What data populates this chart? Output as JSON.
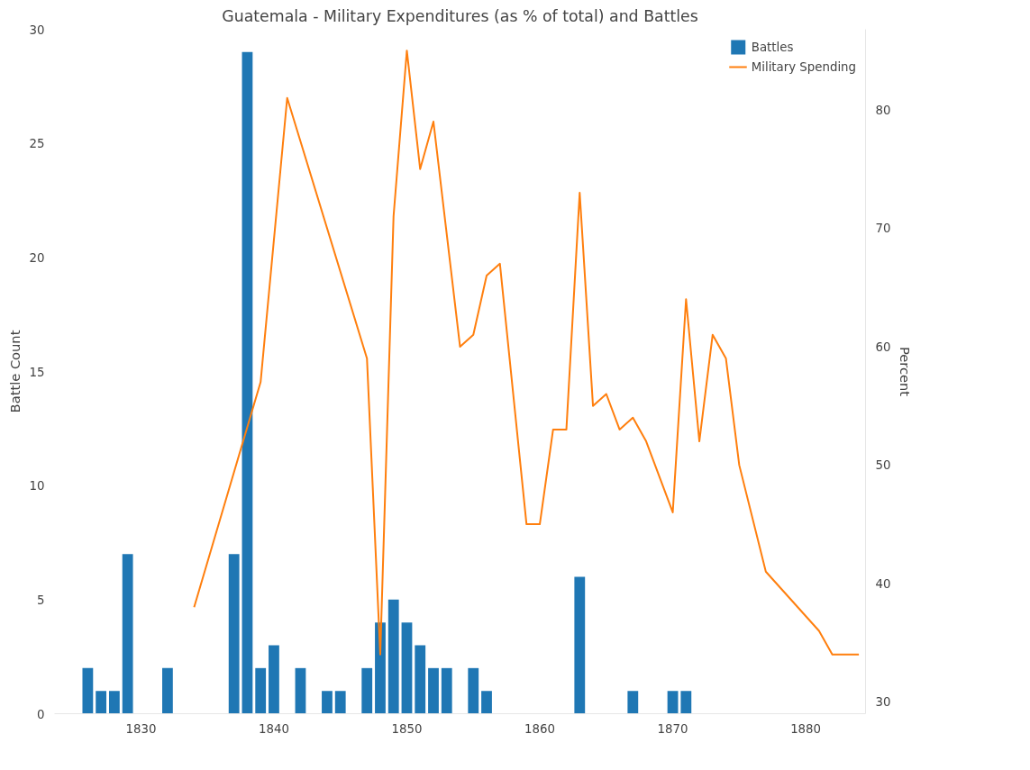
{
  "chart_data": {
    "type": "bar",
    "title": "Guatemala - Military Expenditures (as % of total) and Battles",
    "ylabel": "Battle Count",
    "y2label": "Percent",
    "xlim": [
      1823.5,
      1884.5
    ],
    "xticks": [
      1830,
      1840,
      1850,
      1860,
      1870,
      1880
    ],
    "ylim": [
      0,
      30
    ],
    "yticks": [
      0,
      5,
      10,
      15,
      20,
      25,
      30
    ],
    "y2lim": [
      29,
      86.8
    ],
    "y2ticks": [
      30,
      40,
      50,
      60,
      70,
      80
    ],
    "grid": false,
    "legend": "top right",
    "series": [
      {
        "name": "Battles",
        "color": "#1f77b4",
        "x": [
          1826,
          1827,
          1828,
          1829,
          1832,
          1837,
          1838,
          1839,
          1840,
          1842,
          1844,
          1845,
          1847,
          1848,
          1849,
          1850,
          1851,
          1852,
          1853,
          1855,
          1856,
          1863,
          1867,
          1870,
          1871
        ],
        "values": [
          2,
          1,
          1,
          7,
          2,
          7,
          29,
          2,
          3,
          2,
          1,
          1,
          2,
          4,
          5,
          4,
          3,
          2,
          2,
          2,
          1,
          6,
          1,
          1,
          1
        ]
      },
      {
        "name": "Military Spending",
        "type": "line",
        "axis": "y2",
        "color": "#ff7f0e",
        "x": [
          1834,
          1839,
          1841,
          1847,
          1848,
          1849,
          1850,
          1851,
          1852,
          1854,
          1855,
          1856,
          1857,
          1859,
          1860,
          1861,
          1862,
          1863,
          1864,
          1865,
          1866,
          1867,
          1868,
          1870,
          1871,
          1872,
          1873,
          1874,
          1875,
          1877,
          1881,
          1882,
          1884
        ],
        "values": [
          38,
          57,
          81,
          59,
          34,
          71,
          85,
          75,
          79,
          60,
          61,
          66,
          67,
          45,
          45,
          53,
          53,
          73,
          55,
          56,
          53,
          54,
          52,
          46,
          64,
          52,
          61,
          59,
          50,
          41,
          36,
          34,
          34
        ]
      }
    ]
  }
}
